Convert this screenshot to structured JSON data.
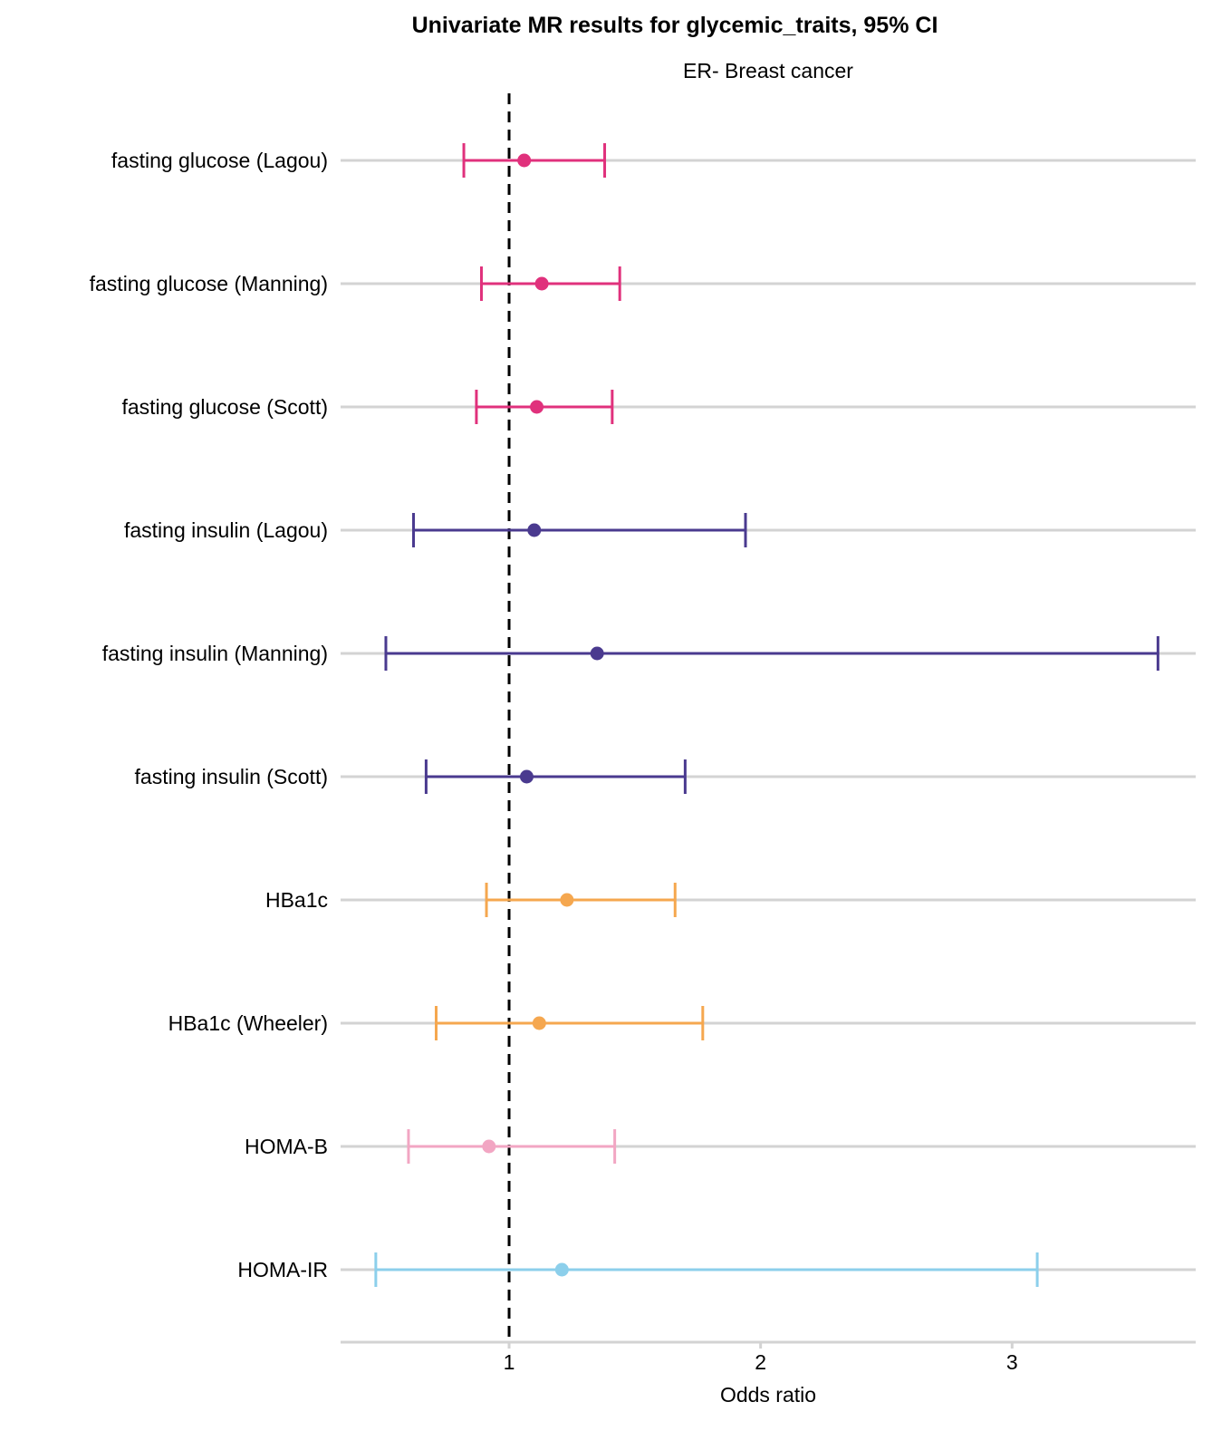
{
  "chart_data": {
    "type": "forest",
    "title": "Univariate MR results for glycemic_traits, 95% CI",
    "subtitle": "ER- Breast cancer",
    "xlabel": "Odds ratio",
    "ylabel": "",
    "xlim": [
      0.33,
      3.73
    ],
    "x_ticks": [
      1,
      2,
      3
    ],
    "reference_line": 1,
    "grid": true,
    "legend": "none",
    "rows": [
      {
        "label": "fasting glucose (Lagou)",
        "or": 1.06,
        "lower": 0.82,
        "upper": 1.38,
        "color": "#e0317c"
      },
      {
        "label": "fasting glucose (Manning)",
        "or": 1.13,
        "lower": 0.89,
        "upper": 1.44,
        "color": "#e0317c"
      },
      {
        "label": "fasting glucose (Scott)",
        "or": 1.11,
        "lower": 0.87,
        "upper": 1.41,
        "color": "#e0317c"
      },
      {
        "label": "fasting insulin (Lagou)",
        "or": 1.1,
        "lower": 0.62,
        "upper": 1.94,
        "color": "#4a3a8f"
      },
      {
        "label": "fasting insulin (Manning)",
        "or": 1.35,
        "lower": 0.51,
        "upper": 3.58,
        "color": "#4a3a8f"
      },
      {
        "label": "fasting insulin (Scott)",
        "or": 1.07,
        "lower": 0.67,
        "upper": 1.7,
        "color": "#4a3a8f"
      },
      {
        "label": "HBa1c",
        "or": 1.23,
        "lower": 0.91,
        "upper": 1.66,
        "color": "#f5a74f"
      },
      {
        "label": "HBa1c (Wheeler)",
        "or": 1.12,
        "lower": 0.71,
        "upper": 1.77,
        "color": "#f5a74f"
      },
      {
        "label": "HOMA-B",
        "or": 0.92,
        "lower": 0.6,
        "upper": 1.42,
        "color": "#f2a6c3"
      },
      {
        "label": "HOMA-IR",
        "or": 1.21,
        "lower": 0.47,
        "upper": 3.1,
        "color": "#8ccfeb"
      }
    ]
  }
}
